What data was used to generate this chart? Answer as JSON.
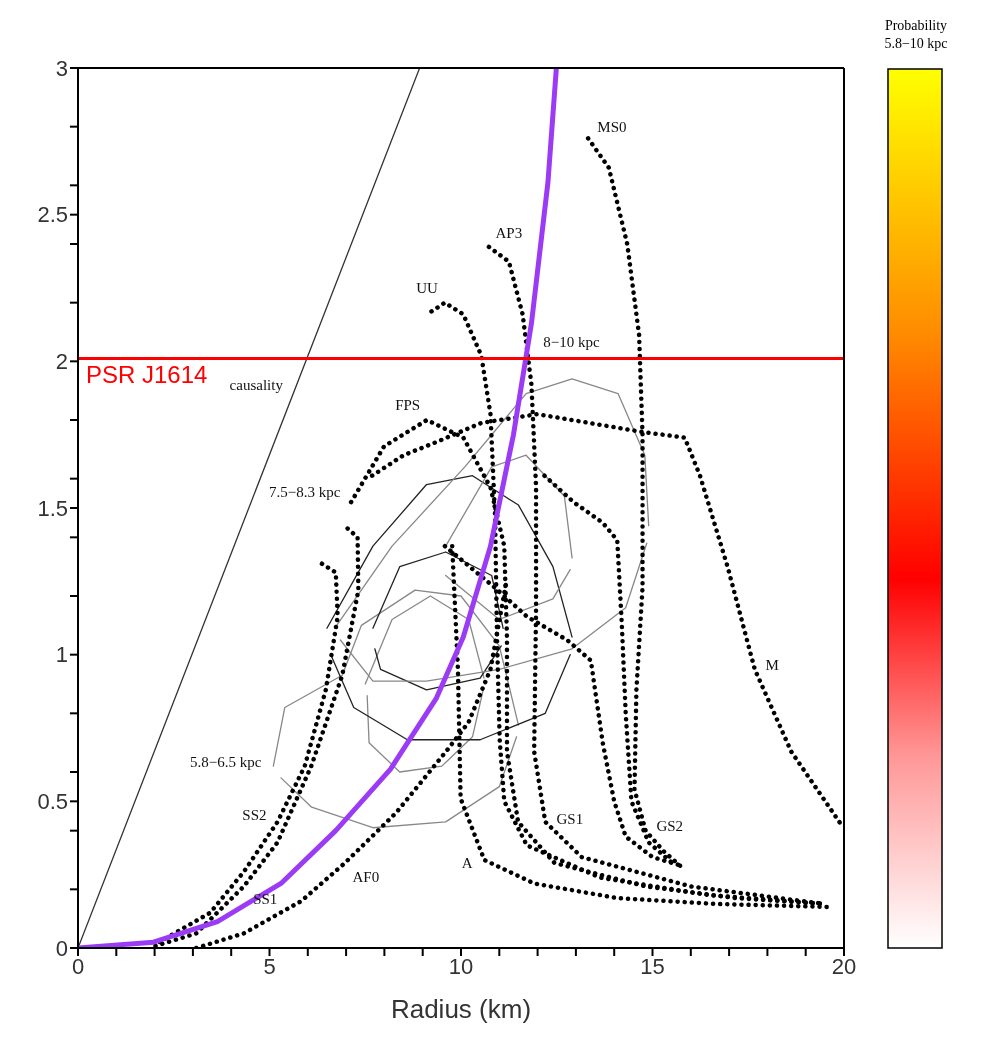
{
  "chart_data": {
    "type": "line",
    "xlabel": "Radius (km)",
    "clabel": "Probability 5.8−10 kpc",
    "xlim": [
      0,
      20
    ],
    "ylim": [
      0,
      3
    ],
    "xticks": [
      0,
      {
        "value": 1,
        "label": null
      },
      {
        "value": 2,
        "label": null
      },
      {
        "value": 3,
        "label": null
      },
      {
        "value": 4,
        "label": null
      },
      5,
      {
        "value": 6,
        "label": null
      },
      {
        "value": 7,
        "label": null
      },
      {
        "value": 8,
        "label": null
      },
      {
        "value": 9,
        "label": null
      },
      10,
      {
        "value": 11,
        "label": null
      },
      {
        "value": 12,
        "label": null
      },
      {
        "value": 13,
        "label": null
      },
      {
        "value": 14,
        "label": null
      },
      15,
      {
        "value": 16,
        "label": null
      },
      {
        "value": 17,
        "label": null
      },
      {
        "value": 18,
        "label": null
      },
      {
        "value": 19,
        "label": null
      },
      20
    ],
    "yticks": [
      0,
      {
        "value": 0.2,
        "label": null
      },
      {
        "value": 0.4,
        "label": null
      },
      0.5,
      {
        "value": 0.6,
        "label": null
      },
      {
        "value": 0.8,
        "label": null
      },
      1,
      {
        "value": 1.2,
        "label": null
      },
      {
        "value": 1.4,
        "label": null
      },
      1.5,
      {
        "value": 1.6,
        "label": null
      },
      {
        "value": 1.8,
        "label": null
      },
      2,
      {
        "value": 2.2,
        "label": null
      },
      {
        "value": 2.4,
        "label": null
      },
      2.5,
      {
        "value": 2.6,
        "label": null
      },
      {
        "value": 2.8,
        "label": null
      },
      3
    ],
    "grid": false,
    "legend": false,
    "marker": "none",
    "line_style": "dotted",
    "series": [
      {
        "color": "#888888",
        "line_style": "solid",
        "x": [
          5.1,
          5.4,
          6.9,
          7.4,
          8.8,
          10.0,
          11.0,
          11.5
        ],
        "values": [
          0.62,
          0.82,
          0.93,
          1.1,
          1.22,
          1.2,
          1.03,
          0.76
        ]
      },
      {
        "color": "#888888",
        "line_style": "solid",
        "x": [
          5.3,
          6.1,
          7.7,
          9.6,
          11.0,
          11.45
        ],
        "values": [
          0.58,
          0.48,
          0.41,
          0.43,
          0.55,
          0.72
        ]
      },
      {
        "color": "#888888",
        "line_style": "solid",
        "x": [
          7.5,
          8.2,
          9.2,
          10.2,
          10.6
        ],
        "values": [
          0.9,
          1.12,
          1.2,
          1.12,
          0.92
        ]
      },
      {
        "color": "#888888",
        "line_style": "solid",
        "x": [
          7.55,
          7.6,
          8.4,
          9.5,
          10.3,
          10.58
        ],
        "values": [
          0.86,
          0.7,
          0.6,
          0.62,
          0.72,
          0.88
        ]
      },
      {
        "color": "#222222",
        "line_style": "solid",
        "x": [
          6.5,
          7.7,
          9.1,
          10.3,
          11.5,
          12.4,
          12.9
        ],
        "values": [
          1.09,
          1.37,
          1.58,
          1.61,
          1.51,
          1.3,
          1.06
        ]
      },
      {
        "color": "#222222",
        "line_style": "solid",
        "x": [
          6.6,
          7.2,
          8.6,
          10.5,
          12.2,
          12.85
        ],
        "values": [
          1.0,
          0.82,
          0.71,
          0.71,
          0.8,
          1.0
        ]
      },
      {
        "color": "#222222",
        "line_style": "solid",
        "x": [
          7.7,
          8.4,
          9.6,
          10.8,
          11.1
        ],
        "values": [
          1.09,
          1.3,
          1.35,
          1.27,
          1.09
        ]
      },
      {
        "color": "#222222",
        "line_style": "solid",
        "x": [
          7.75,
          7.9,
          9.1,
          10.5,
          11.05
        ],
        "values": [
          1.02,
          0.95,
          0.88,
          0.92,
          1.03
        ]
      },
      {
        "color": "#888888",
        "line_style": "solid",
        "x": [
          6.7,
          8.2,
          10.1,
          11.7,
          12.9,
          14.1,
          14.8,
          14.9
        ],
        "values": [
          1.09,
          1.37,
          1.64,
          1.89,
          1.94,
          1.89,
          1.68,
          1.44
        ]
      },
      {
        "color": "#888888",
        "line_style": "solid",
        "x": [
          6.85,
          7.7,
          9.1,
          11.0,
          12.9,
          14.3,
          14.85
        ],
        "values": [
          1.05,
          0.91,
          0.91,
          0.95,
          1.02,
          1.16,
          1.38
        ]
      },
      {
        "color": "#888888",
        "line_style": "solid",
        "x": [
          9.6,
          10.8,
          11.7,
          12.7,
          12.9
        ],
        "values": [
          1.37,
          1.64,
          1.68,
          1.54,
          1.33
        ]
      },
      {
        "color": "#888888",
        "line_style": "solid",
        "x": [
          9.6,
          11.0,
          12.4,
          12.85
        ],
        "values": [
          1.27,
          1.12,
          1.19,
          1.29
        ]
      },
      {
        "color": "#000000",
        "x": [
          13.32,
          13.86,
          14.34,
          14.65,
          14.74,
          14.74,
          14.58,
          14.53,
          14.82,
          15.29,
          15.81
        ],
        "values": [
          2.76,
          2.66,
          2.4,
          2.09,
          1.75,
          1.23,
          0.88,
          0.54,
          0.4,
          0.33,
          0.27
        ]
      },
      {
        "color": "#000000",
        "x": [
          10.73,
          11.25,
          11.61,
          11.84,
          11.96,
          11.96,
          11.91,
          12.2,
          13.15,
          16.0,
          19.5
        ],
        "values": [
          2.39,
          2.34,
          2.16,
          1.92,
          1.57,
          1.16,
          0.67,
          0.43,
          0.31,
          0.21,
          0.15
        ]
      },
      {
        "color": "#000000",
        "x": [
          9.23,
          9.58,
          10.06,
          10.53,
          10.77,
          10.89,
          10.94,
          11.01,
          11.13,
          11.72,
          13.63,
          16.5,
          19.5
        ],
        "values": [
          2.17,
          2.2,
          2.16,
          2.02,
          1.82,
          1.47,
          1.06,
          0.71,
          0.5,
          0.35,
          0.24,
          0.18,
          0.15
        ]
      },
      {
        "color": "#000000",
        "x": [
          7.13,
          7.99,
          9.11,
          10.06,
          10.77,
          11.13,
          11.2,
          11.2,
          11.49,
          12.44,
          14.82,
          17.19,
          19.5
        ],
        "values": [
          1.52,
          1.71,
          1.8,
          1.74,
          1.57,
          1.37,
          1.06,
          0.67,
          0.43,
          0.29,
          0.21,
          0.17,
          0.15
        ]
      },
      {
        "color": "#000000",
        "x": [
          7.68,
          8.5,
          9.27,
          10.53,
          11.99,
          14.7,
          15.84,
          16.24,
          16.96,
          17.67,
          18.62,
          19.93
        ],
        "values": [
          1.61,
          1.68,
          1.72,
          1.79,
          1.82,
          1.76,
          1.74,
          1.61,
          1.3,
          0.95,
          0.67,
          0.42
        ]
      },
      {
        "color": "#000000",
        "x": [
          9.58,
          10.87,
          11.72,
          12.77,
          13.39,
          13.7,
          14.0,
          14.3,
          15.0,
          15.77
        ],
        "values": [
          1.37,
          1.23,
          1.13,
          1.05,
          0.98,
          0.7,
          0.5,
          0.38,
          0.31,
          0.28
        ]
      },
      {
        "color": "#000000",
        "x": [
          12.18,
          12.94,
          13.7,
          14.08,
          14.2,
          14.3,
          14.45,
          14.9,
          15.6
        ],
        "values": [
          1.61,
          1.52,
          1.45,
          1.39,
          1.1,
          0.8,
          0.5,
          0.36,
          0.28
        ]
      },
      {
        "color": "#000000",
        "x": [
          9.77,
          9.92,
          9.99,
          10.61,
          11.91,
          14.08,
          16.67,
          19.55
        ],
        "values": [
          1.37,
          0.95,
          0.51,
          0.3,
          0.22,
          0.17,
          0.15,
          0.14
        ]
      },
      {
        "color": "#000000",
        "x": [
          3.09,
          4.33,
          5.83,
          6.97,
          8.3,
          9.61,
          10.2,
          10.77,
          11.2
        ],
        "values": [
          0.0,
          0.05,
          0.16,
          0.29,
          0.46,
          0.67,
          0.77,
          0.95,
          1.26
        ]
      },
      {
        "color": "#000000",
        "x": [
          6.37,
          6.73,
          6.78,
          6.47,
          5.92,
          5.21,
          4.33,
          3.45,
          2.12
        ],
        "values": [
          1.31,
          1.28,
          1.13,
          0.88,
          0.62,
          0.43,
          0.26,
          0.12,
          0.02
        ]
      },
      {
        "color": "#000000",
        "x": [
          7.04,
          7.3,
          7.32,
          6.9,
          6.09,
          5.21,
          4.33,
          3.09,
          1.85
        ],
        "values": [
          1.43,
          1.4,
          1.22,
          0.93,
          0.62,
          0.36,
          0.21,
          0.05,
          0.0
        ]
      },
      {
        "color": "#333333",
        "line_style": "solid",
        "x": [
          0,
          8.92
        ],
        "values": [
          0,
          3
        ]
      },
      {
        "color": "#9b3bf5",
        "line_style": "solid",
        "x": [
          0,
          1.97,
          3.64,
          5.3,
          6.73,
          8.16,
          9.35,
          10.06,
          10.77,
          11.37,
          11.84,
          12.27,
          12.49
        ],
        "values": [
          0,
          0.02,
          0.09,
          0.22,
          0.4,
          0.61,
          0.85,
          1.06,
          1.37,
          1.75,
          2.13,
          2.61,
          3.0
        ]
      }
    ],
    "ref_lines": [
      {
        "axis": "y",
        "value": 2.01,
        "label": "PSR J1614",
        "color": "#ff0000",
        "line_style": "solid"
      }
    ],
    "annotations": [
      {
        "text": "MS0",
        "x": 13.32,
        "y": 2.76
      },
      {
        "text": "AP3",
        "x": 10.73,
        "y": 2.39
      },
      {
        "text": "UU",
        "x": 9.58,
        "y": 2.2
      },
      {
        "text": "FPS",
        "x": 9.11,
        "y": 1.8
      },
      {
        "text": "8−10 kpc",
        "x": 12.9,
        "y": 2.01
      },
      {
        "text": "7.5−8.3 kpc",
        "x": 7.13,
        "y": 1.52
      },
      {
        "text": "5.8−6.5 kpc",
        "x": 5.1,
        "y": 0.62
      },
      {
        "text": "causality",
        "x": 5.65,
        "y": 1.9
      },
      {
        "text": "SS2",
        "x": 5.21,
        "y": 0.43
      },
      {
        "text": "SS1",
        "x": 4.33,
        "y": 0.21
      },
      {
        "text": "AF0",
        "x": 6.97,
        "y": 0.29
      },
      {
        "text": "A",
        "x": 10.61,
        "y": 0.3
      },
      {
        "text": "GS1",
        "x": 12.2,
        "y": 0.43
      },
      {
        "text": "GS2",
        "x": 14.82,
        "y": 0.4
      },
      {
        "text": "M",
        "x": 17.67,
        "y": 0.95
      }
    ]
  }
}
